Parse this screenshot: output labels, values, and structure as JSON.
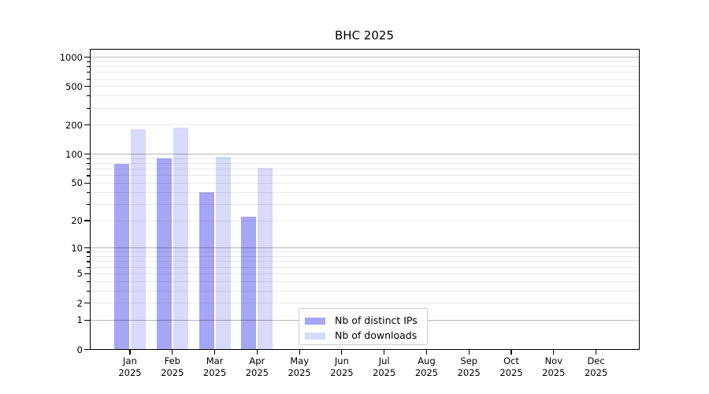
{
  "chart_data": {
    "type": "bar",
    "title": "BHC 2025",
    "scale": "log1p",
    "grid": "both",
    "legend_position": "lower center-right inside plot",
    "ylim": [
      0,
      1220
    ],
    "ytick_values": [
      0,
      1,
      2,
      5,
      10,
      20,
      50,
      100,
      200,
      500,
      1000
    ],
    "ytick_labels": [
      "0",
      "1",
      "2",
      "5",
      "10",
      "20",
      "50",
      "100",
      "200",
      "500",
      "1000"
    ],
    "major_grid_values": [
      1,
      10,
      100,
      1000
    ],
    "minor_grid_values": [
      2,
      3,
      4,
      5,
      6,
      7,
      8,
      9,
      20,
      30,
      40,
      50,
      60,
      70,
      80,
      90,
      200,
      300,
      400,
      500,
      600,
      700,
      800,
      900
    ],
    "categories": [
      {
        "month": "Jan",
        "year": "2025"
      },
      {
        "month": "Feb",
        "year": "2025"
      },
      {
        "month": "Mar",
        "year": "2025"
      },
      {
        "month": "Apr",
        "year": "2025"
      },
      {
        "month": "May",
        "year": "2025"
      },
      {
        "month": "Jun",
        "year": "2025"
      },
      {
        "month": "Jul",
        "year": "2025"
      },
      {
        "month": "Aug",
        "year": "2025"
      },
      {
        "month": "Sep",
        "year": "2025"
      },
      {
        "month": "Oct",
        "year": "2025"
      },
      {
        "month": "Nov",
        "year": "2025"
      },
      {
        "month": "Dec",
        "year": "2025"
      }
    ],
    "series": [
      {
        "name": "Nb of distinct IPs",
        "color": "#a6a6f4",
        "values": [
          80,
          90,
          40,
          22,
          0,
          0,
          0,
          0,
          0,
          0,
          0,
          0
        ]
      },
      {
        "name": "Nb of downloads",
        "color": "#d9d9fa",
        "values": [
          180,
          190,
          95,
          72,
          0,
          0,
          0,
          0,
          0,
          0,
          0,
          0
        ]
      }
    ]
  },
  "colors": {
    "distinct_ips_bar": "#a6a6f4",
    "downloads_bar": "#d9d9fa",
    "axis": "#000000",
    "legend_border": "#cccccc"
  }
}
